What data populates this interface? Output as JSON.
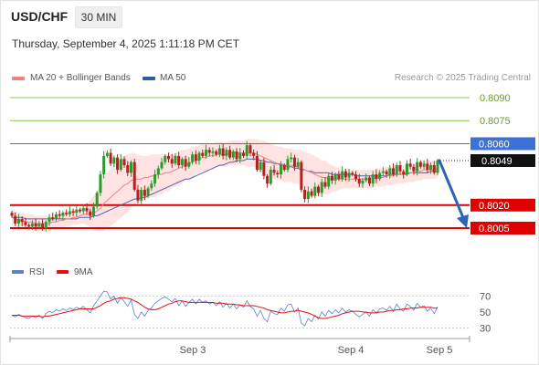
{
  "header": {
    "symbol": "USD/CHF",
    "timeframe": "30 MIN",
    "datetime": "Thursday, September 4, 2025 1:11:18 PM CET",
    "credit": "Research © 2025 Trading Central"
  },
  "legend": {
    "items": [
      {
        "label": "MA 20 + Bollinger Bands",
        "color": "#f08080"
      },
      {
        "label": "MA 50",
        "color": "#2d5aa0"
      }
    ]
  },
  "rsi_legend": {
    "items": [
      {
        "label": "RSI",
        "color": "#5b7fd6"
      },
      {
        "label": "9MA",
        "color": "#e01010"
      }
    ]
  },
  "colors": {
    "up_candle": "#2b9b2b",
    "down_candle": "#b32020",
    "resistance": "#8bc34a",
    "pivot": "#3c72d8",
    "support": "#e00000",
    "bands_fill": "#ffdede",
    "ma20": "#f08080",
    "ma50": "#4a64b0",
    "arrow": "#2d62b5"
  },
  "chart_data": [
    {
      "type": "candlestick",
      "title": "USD/CHF 30 MIN",
      "ylim": [
        0.79935,
        0.80995
      ],
      "x_ticks": [
        "Sep 3",
        "Sep 4",
        "Sep 5"
      ],
      "levels": [
        {
          "value": 0.809,
          "label": "0.8090",
          "kind": "resistance"
        },
        {
          "value": 0.8075,
          "label": "0.8075",
          "kind": "resistance"
        },
        {
          "value": 0.806,
          "label": "0.8060",
          "kind": "pivot"
        },
        {
          "value": 0.802,
          "label": "0.8020",
          "kind": "support"
        },
        {
          "value": 0.8005,
          "label": "0.8005",
          "kind": "support"
        }
      ],
      "current_price": 0.8049,
      "forecast": {
        "from": 0.8049,
        "to": 0.8005
      },
      "series": {
        "close": [
          0.8013,
          0.8008,
          0.8011,
          0.8009,
          0.8007,
          0.8006,
          0.8008,
          0.8006,
          0.8008,
          0.8005,
          0.8009,
          0.8012,
          0.8011,
          0.8014,
          0.8013,
          0.8015,
          0.8014,
          0.8016,
          0.8015,
          0.8017,
          0.8016,
          0.8018,
          0.8016,
          0.8013,
          0.8019,
          0.8028,
          0.804,
          0.8052,
          0.8054,
          0.8047,
          0.8051,
          0.8043,
          0.805,
          0.8046,
          0.8041,
          0.8048,
          0.803,
          0.8023,
          0.803,
          0.8026,
          0.8031,
          0.8034,
          0.804,
          0.8044,
          0.8048,
          0.8052,
          0.805,
          0.8047,
          0.8052,
          0.8046,
          0.805,
          0.8045,
          0.8048,
          0.8053,
          0.8049,
          0.8054,
          0.8052,
          0.8056,
          0.8054,
          0.8055,
          0.8053,
          0.8057,
          0.8052,
          0.8056,
          0.8051,
          0.8055,
          0.805,
          0.8054,
          0.8052,
          0.8059,
          0.8054,
          0.8052,
          0.8043,
          0.8048,
          0.8039,
          0.8034,
          0.8043,
          0.8041,
          0.804,
          0.8046,
          0.8043,
          0.805,
          0.8051,
          0.8045,
          0.8048,
          0.803,
          0.8024,
          0.8029,
          0.8026,
          0.8032,
          0.8028,
          0.8035,
          0.8032,
          0.8039,
          0.8036,
          0.804,
          0.8037,
          0.8042,
          0.8038,
          0.8041,
          0.804,
          0.8037,
          0.8034,
          0.8036,
          0.8038,
          0.8034,
          0.804,
          0.8037,
          0.8041,
          0.8042,
          0.804,
          0.8044,
          0.804,
          0.8046,
          0.8042,
          0.804,
          0.8047,
          0.8045,
          0.8042,
          0.8048,
          0.8045,
          0.8047,
          0.8043,
          0.8046,
          0.8041,
          0.8049
        ],
        "ma20": [
          0.8012,
          0.8011,
          0.801,
          0.801,
          0.8009,
          0.8009,
          0.8009,
          0.8008,
          0.8008,
          0.8008,
          0.8008,
          0.8008,
          0.8009,
          0.8009,
          0.801,
          0.801,
          0.8011,
          0.8011,
          0.8012,
          0.8012,
          0.8013,
          0.8014,
          0.8014,
          0.8014,
          0.8015,
          0.8016,
          0.8018,
          0.8021,
          0.8023,
          0.8025,
          0.8027,
          0.8029,
          0.8031,
          0.8033,
          0.8034,
          0.8036,
          0.8037,
          0.8037,
          0.8037,
          0.8038,
          0.8038,
          0.8039,
          0.8039,
          0.804,
          0.804,
          0.8041,
          0.8041,
          0.8042,
          0.8043,
          0.8044,
          0.8045,
          0.8046,
          0.8047,
          0.8048,
          0.8049,
          0.805,
          0.8051,
          0.8051,
          0.8052,
          0.8052,
          0.8053,
          0.8053,
          0.8053,
          0.8053,
          0.8054,
          0.8054,
          0.8054,
          0.8054,
          0.8054,
          0.8054,
          0.8054,
          0.8054,
          0.8053,
          0.8052,
          0.8051,
          0.805,
          0.8049,
          0.8048,
          0.8047,
          0.8047,
          0.8046,
          0.8046,
          0.8046,
          0.8045,
          0.8045,
          0.8044,
          0.8043,
          0.8042,
          0.8041,
          0.804,
          0.8039,
          0.8038,
          0.8038,
          0.8037,
          0.8037,
          0.8037,
          0.8037,
          0.8037,
          0.8037,
          0.8037,
          0.8037,
          0.8037,
          0.8037,
          0.8037,
          0.8037,
          0.8037,
          0.8037,
          0.8038,
          0.8038,
          0.8038,
          0.8039,
          0.8039,
          0.8039,
          0.804,
          0.804,
          0.804,
          0.8041,
          0.8041,
          0.8041,
          0.8042,
          0.8042,
          0.8043,
          0.8043,
          0.8043,
          0.8043,
          0.8044
        ],
        "bb_width": [
          0.0005,
          0.0005,
          0.0005,
          0.0005,
          0.0005,
          0.0005,
          0.0005,
          0.0005,
          0.0005,
          0.0005,
          0.0005,
          0.0005,
          0.0005,
          0.0005,
          0.0005,
          0.0005,
          0.0005,
          0.0005,
          0.0005,
          0.0005,
          0.0005,
          0.0006,
          0.0007,
          0.0009,
          0.0011,
          0.0013,
          0.0015,
          0.0017,
          0.0018,
          0.0019,
          0.0019,
          0.0019,
          0.0019,
          0.0019,
          0.0019,
          0.0018,
          0.0017,
          0.0016,
          0.0015,
          0.0014,
          0.0014,
          0.0014,
          0.0014,
          0.0013,
          0.0013,
          0.0012,
          0.0012,
          0.0011,
          0.0011,
          0.0011,
          0.0011,
          0.001,
          0.001,
          0.001,
          0.0009,
          0.0009,
          0.0009,
          0.0009,
          0.0008,
          0.0008,
          0.0008,
          0.0008,
          0.0008,
          0.0008,
          0.0008,
          0.0008,
          0.0008,
          0.0008,
          0.0008,
          0.0009,
          0.0009,
          0.0009,
          0.001,
          0.001,
          0.0011,
          0.0011,
          0.0011,
          0.0011,
          0.0011,
          0.0011,
          0.0011,
          0.0011,
          0.0011,
          0.0011,
          0.0011,
          0.0012,
          0.0012,
          0.0012,
          0.0012,
          0.0012,
          0.0012,
          0.0011,
          0.0011,
          0.001,
          0.0009,
          0.0008,
          0.0007,
          0.0006,
          0.0006,
          0.0006,
          0.0006,
          0.0006,
          0.0006,
          0.0006,
          0.0006,
          0.0006,
          0.0006,
          0.0006,
          0.0006,
          0.0006,
          0.0006,
          0.0006,
          0.0006,
          0.0006,
          0.0006,
          0.0006,
          0.0006,
          0.0006,
          0.0006,
          0.0006,
          0.0006,
          0.0006,
          0.0006,
          0.0006,
          0.0006,
          0.0006
        ],
        "ma50": [
          0.8012,
          0.8012,
          0.8012,
          0.8012,
          0.8011,
          0.8011,
          0.8011,
          0.8011,
          0.8011,
          0.8011,
          0.8011,
          0.8011,
          0.8011,
          0.8011,
          0.8011,
          0.8011,
          0.8011,
          0.8011,
          0.8011,
          0.8011,
          0.8012,
          0.8012,
          0.8012,
          0.8012,
          0.8013,
          0.8013,
          0.8014,
          0.8015,
          0.8016,
          0.8017,
          0.8018,
          0.8019,
          0.802,
          0.8021,
          0.8022,
          0.8023,
          0.8024,
          0.8024,
          0.8025,
          0.8025,
          0.8026,
          0.8027,
          0.8028,
          0.8029,
          0.803,
          0.8031,
          0.8032,
          0.8033,
          0.8034,
          0.8035,
          0.8036,
          0.8037,
          0.8037,
          0.8038,
          0.8039,
          0.804,
          0.8041,
          0.8042,
          0.8043,
          0.8044,
          0.8045,
          0.8046,
          0.8046,
          0.8047,
          0.8048,
          0.8048,
          0.8049,
          0.8049,
          0.8049,
          0.805,
          0.805,
          0.805,
          0.805,
          0.8049,
          0.8049,
          0.8048,
          0.8048,
          0.8047,
          0.8047,
          0.8046,
          0.8046,
          0.8045,
          0.8045,
          0.8044,
          0.8044,
          0.8043,
          0.8043,
          0.8042,
          0.8042,
          0.8041,
          0.8041,
          0.8041,
          0.8041,
          0.8041,
          0.804,
          0.804,
          0.804,
          0.804,
          0.804,
          0.804,
          0.804,
          0.8039,
          0.8039,
          0.8039,
          0.8039,
          0.8039,
          0.8039,
          0.8039,
          0.8039,
          0.8039,
          0.8039,
          0.804,
          0.804,
          0.804,
          0.804,
          0.804,
          0.804,
          0.8041,
          0.8041,
          0.8041,
          0.8041,
          0.8041,
          0.8041,
          0.8042,
          0.8042,
          0.8042
        ]
      }
    },
    {
      "type": "line",
      "title": "RSI",
      "ylim": [
        20,
        80
      ],
      "y_ticks": [
        70,
        50,
        30
      ],
      "guide_levels": [
        70,
        30
      ],
      "series": [
        {
          "name": "RSI",
          "values": [
            46,
            44,
            47,
            45,
            43,
            42,
            45,
            43,
            46,
            42,
            48,
            51,
            49,
            53,
            51,
            54,
            52,
            55,
            53,
            56,
            54,
            57,
            53,
            49,
            58,
            64,
            70,
            76,
            75,
            66,
            70,
            61,
            68,
            63,
            57,
            65,
            47,
            42,
            50,
            45,
            52,
            55,
            61,
            64,
            67,
            69,
            66,
            63,
            67,
            58,
            64,
            57,
            62,
            66,
            60,
            66,
            62,
            64,
            60,
            62,
            58,
            63,
            56,
            61,
            55,
            60,
            54,
            59,
            56,
            64,
            57,
            54,
            45,
            52,
            42,
            38,
            51,
            48,
            47,
            55,
            51,
            59,
            60,
            50,
            55,
            36,
            33,
            42,
            38,
            46,
            41,
            50,
            45,
            52,
            48,
            53,
            49,
            55,
            50,
            53,
            51,
            47,
            44,
            47,
            50,
            45,
            53,
            49,
            54,
            55,
            52,
            57,
            51,
            60,
            54,
            51,
            60,
            57,
            52,
            61,
            56,
            58,
            51,
            55,
            48,
            57
          ]
        },
        {
          "name": "9MA",
          "values": [
            46,
            46,
            46,
            45,
            45,
            45,
            45,
            45,
            45,
            44,
            45,
            45,
            46,
            47,
            48,
            49,
            50,
            51,
            52,
            53,
            54,
            54,
            54,
            54,
            54,
            56,
            58,
            61,
            63,
            64,
            66,
            67,
            68,
            68,
            67,
            66,
            64,
            62,
            59,
            56,
            54,
            53,
            53,
            54,
            56,
            58,
            60,
            61,
            63,
            64,
            64,
            63,
            62,
            62,
            62,
            62,
            62,
            62,
            62,
            62,
            61,
            61,
            61,
            60,
            60,
            60,
            59,
            59,
            58,
            58,
            58,
            58,
            57,
            56,
            55,
            53,
            52,
            51,
            50,
            49,
            49,
            50,
            51,
            51,
            52,
            51,
            50,
            49,
            47,
            45,
            43,
            42,
            42,
            43,
            44,
            45,
            46,
            48,
            49,
            50,
            51,
            51,
            51,
            50,
            50,
            49,
            49,
            49,
            50,
            50,
            51,
            52,
            52,
            53,
            53,
            54,
            54,
            55,
            55,
            55,
            56,
            56,
            56,
            56,
            55,
            55
          ]
        }
      ]
    }
  ]
}
